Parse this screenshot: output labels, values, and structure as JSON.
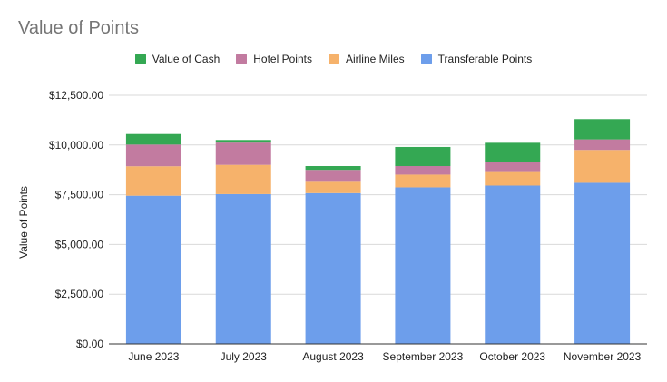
{
  "chart_data": {
    "type": "bar",
    "stacked": true,
    "title": "Value of Points",
    "xlabel": "",
    "ylabel": "Value of Points",
    "ylim": [
      0,
      13000
    ],
    "yticks": [
      0,
      2500,
      5000,
      7500,
      10000,
      12500
    ],
    "ytick_labels": [
      "$0.00",
      "$2,500.00",
      "$5,000.00",
      "$7,500.00",
      "$10,000.00",
      "$12,500.00"
    ],
    "grid": true,
    "legend_position": "top",
    "categories": [
      "June 2023",
      "July 2023",
      "August 2023",
      "September 2023",
      "October 2023",
      "November 2023"
    ],
    "series": [
      {
        "name": "Transferable Points",
        "color": "#6d9eeb",
        "values": [
          7450,
          7530,
          7580,
          7870,
          7960,
          8100
        ]
      },
      {
        "name": "Airline Miles",
        "color": "#f6b26b",
        "values": [
          1480,
          1470,
          570,
          640,
          680,
          1650
        ]
      },
      {
        "name": "Hotel Points",
        "color": "#c27ba0",
        "values": [
          1090,
          1120,
          600,
          430,
          510,
          530
        ]
      },
      {
        "name": "Value of Cash",
        "color": "#34a853",
        "values": [
          530,
          130,
          190,
          960,
          960,
          1020
        ]
      }
    ],
    "legend_order": [
      "Value of Cash",
      "Hotel Points",
      "Airline Miles",
      "Transferable Points"
    ]
  }
}
